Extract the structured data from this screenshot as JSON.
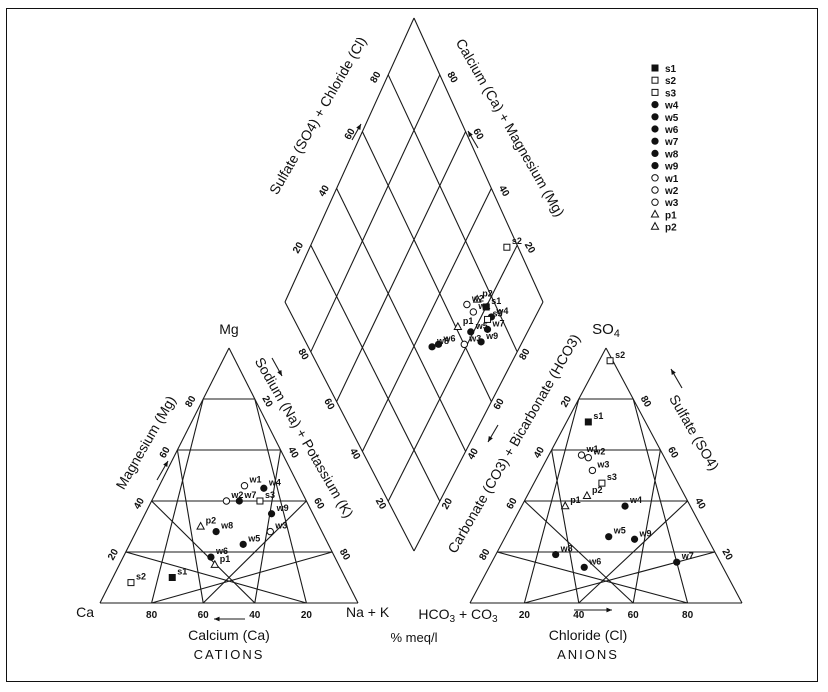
{
  "chart_data": {
    "type": "piper",
    "labels": {
      "cation_top": "Mg",
      "cation_left": "Ca",
      "cation_right": "Na + K",
      "cation_axis": "Calcium (Ca)",
      "cation_left_side": "Magnesium (Mg)",
      "cation_right_side": "Sodium (Na) + Potassium (K)",
      "cations": "CATIONS",
      "units": "% meq/l",
      "anion_top": "SO4",
      "anion_left": "HCO3 + CO3",
      "anion_axis": "Chloride (Cl)",
      "anion_left_side": "Carbonate (CO3) + Bicarbonate (HCO3)",
      "anion_right_side": "Sulfate (SO4)",
      "anions": "ANIONS",
      "diamond_upper_left": "Sulfate (SO4) + Chloride (Cl)",
      "diamond_upper_right": "Calcium (Ca) + Magnesium (Mg)"
    },
    "ticks": [
      "20",
      "40",
      "60",
      "80"
    ],
    "legend": [
      {
        "id": "s1",
        "marker": "filled-square"
      },
      {
        "id": "s2",
        "marker": "open-square"
      },
      {
        "id": "s3",
        "marker": "open-square"
      },
      {
        "id": "w4",
        "marker": "filled-circle"
      },
      {
        "id": "w5",
        "marker": "filled-circle"
      },
      {
        "id": "w6",
        "marker": "filled-circle"
      },
      {
        "id": "w7",
        "marker": "filled-circle"
      },
      {
        "id": "w8",
        "marker": "filled-circle"
      },
      {
        "id": "w9",
        "marker": "filled-circle"
      },
      {
        "id": "w1",
        "marker": "open-circle"
      },
      {
        "id": "w2",
        "marker": "open-circle"
      },
      {
        "id": "w3",
        "marker": "open-circle"
      },
      {
        "id": "p1",
        "marker": "open-triangle"
      },
      {
        "id": "p2",
        "marker": "open-triangle"
      }
    ],
    "cation_points": [
      {
        "id": "w1",
        "na_k": 33,
        "mg": 46
      },
      {
        "id": "w4",
        "na_k": 41,
        "mg": 45
      },
      {
        "id": "w2",
        "na_k": 29,
        "mg": 40
      },
      {
        "id": "w7",
        "na_k": 34,
        "mg": 40
      },
      {
        "id": "s3",
        "na_k": 42,
        "mg": 40
      },
      {
        "id": "w9",
        "na_k": 49,
        "mg": 35
      },
      {
        "id": "w8",
        "na_k": 31,
        "mg": 28
      },
      {
        "id": "p2",
        "na_k": 24,
        "mg": 30
      },
      {
        "id": "w3",
        "na_k": 52,
        "mg": 28
      },
      {
        "id": "w5",
        "na_k": 44,
        "mg": 23
      },
      {
        "id": "w6",
        "na_k": 34,
        "mg": 18
      },
      {
        "id": "p1",
        "na_k": 37,
        "mg": 15
      },
      {
        "id": "s1",
        "na_k": 23,
        "mg": 10
      },
      {
        "id": "s2",
        "na_k": 8,
        "mg": 8
      }
    ],
    "anion_points": [
      {
        "id": "s2",
        "cl": 4,
        "so4": 95
      },
      {
        "id": "s1",
        "cl": 8,
        "so4": 71
      },
      {
        "id": "w1",
        "cl": 12,
        "so4": 58
      },
      {
        "id": "w2",
        "cl": 15,
        "so4": 57
      },
      {
        "id": "w3",
        "cl": 19,
        "so4": 52
      },
      {
        "id": "s3",
        "cl": 25,
        "so4": 47
      },
      {
        "id": "p2",
        "cl": 22,
        "so4": 42
      },
      {
        "id": "p1",
        "cl": 16,
        "so4": 38
      },
      {
        "id": "w4",
        "cl": 38,
        "so4": 38
      },
      {
        "id": "w5",
        "cl": 38,
        "so4": 26
      },
      {
        "id": "w9",
        "cl": 48,
        "so4": 25
      },
      {
        "id": "w8",
        "cl": 22,
        "so4": 19
      },
      {
        "id": "w6",
        "cl": 35,
        "so4": 14
      },
      {
        "id": "w7",
        "cl": 68,
        "so4": 16
      }
    ],
    "diamond_points": [
      {
        "id": "s2",
        "so4_cl": 97,
        "ca_mg": 75
      },
      {
        "id": "p2",
        "so4_cl": 75,
        "ca_mg": 74
      },
      {
        "id": "s1",
        "so4_cl": 77,
        "ca_mg": 79
      },
      {
        "id": "w4",
        "so4_cl": 77,
        "ca_mg": 83
      },
      {
        "id": "s3",
        "so4_cl": 75,
        "ca_mg": 82
      },
      {
        "id": "w7",
        "so4_cl": 73,
        "ca_mg": 84
      },
      {
        "id": "w1",
        "so4_cl": 71,
        "ca_mg": 75
      },
      {
        "id": "w2",
        "so4_cl": 70,
        "ca_mg": 71
      },
      {
        "id": "w9",
        "so4_cl": 68,
        "ca_mg": 84
      },
      {
        "id": "w5",
        "so4_cl": 66,
        "ca_mg": 78
      },
      {
        "id": "p1",
        "so4_cl": 62,
        "ca_mg": 72
      },
      {
        "id": "w3",
        "so4_cl": 61,
        "ca_mg": 78
      },
      {
        "id": "w6",
        "so4_cl": 51,
        "ca_mg": 68
      },
      {
        "id": "w8",
        "so4_cl": 48,
        "ca_mg": 66
      }
    ]
  }
}
